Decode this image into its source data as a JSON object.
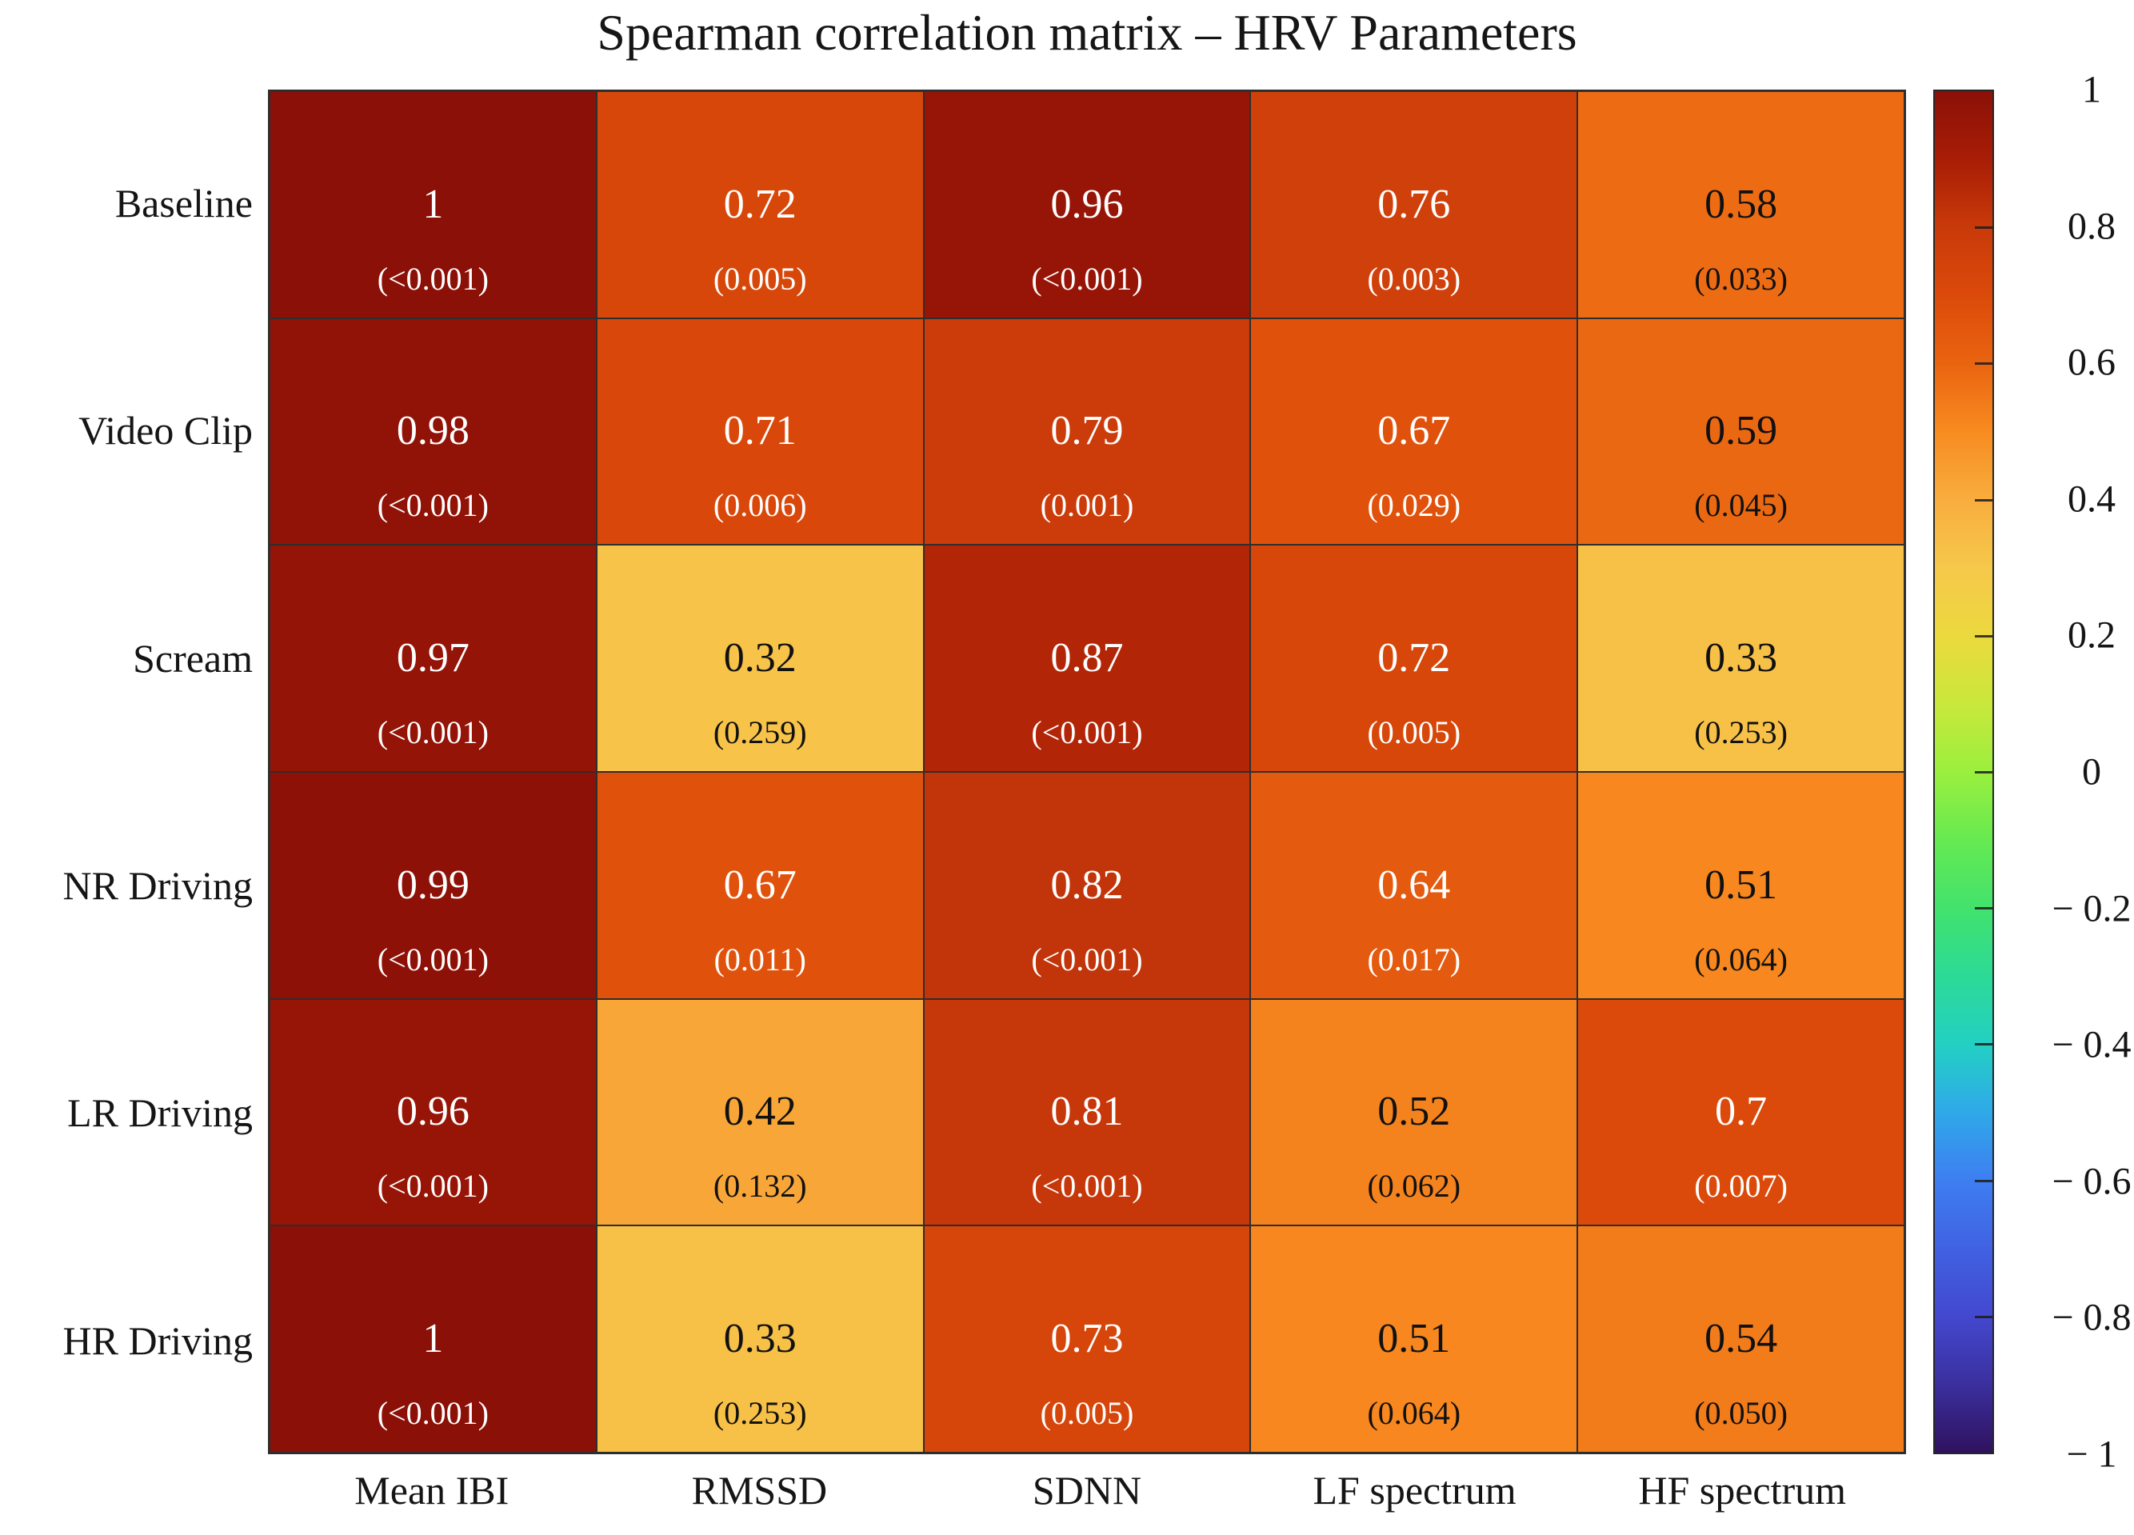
{
  "figure": {
    "background": "#ffffff",
    "grid_line_color": "#2e2e2e",
    "text_dark": "#151515",
    "cell_text_light": "#ffffff",
    "cell_text_dark": "#111111"
  },
  "chart_data": {
    "type": "heatmap",
    "title": "Spearman correlation matrix – HRV Parameters",
    "rows": [
      "Baseline",
      "Video Clip",
      "Scream",
      "NR Driving",
      "LR Driving",
      "HR Driving"
    ],
    "columns": [
      "Mean IBI",
      "RMSSD",
      "SDNN",
      "LF spectrum",
      "HF spectrum"
    ],
    "value_range": [
      -1,
      1
    ],
    "cells": [
      [
        {
          "value": 1.0,
          "label": "1",
          "p": "(<0.001)"
        },
        {
          "value": 0.72,
          "label": "0.72",
          "p": "(0.005)"
        },
        {
          "value": 0.96,
          "label": "0.96",
          "p": "(<0.001)"
        },
        {
          "value": 0.76,
          "label": "0.76",
          "p": "(0.003)"
        },
        {
          "value": 0.58,
          "label": "0.58",
          "p": "(0.033)"
        }
      ],
      [
        {
          "value": 0.98,
          "label": "0.98",
          "p": "(<0.001)"
        },
        {
          "value": 0.71,
          "label": "0.71",
          "p": "(0.006)"
        },
        {
          "value": 0.79,
          "label": "0.79",
          "p": "(0.001)"
        },
        {
          "value": 0.67,
          "label": "0.67",
          "p": "(0.029)"
        },
        {
          "value": 0.59,
          "label": "0.59",
          "p": "(0.045)"
        }
      ],
      [
        {
          "value": 0.97,
          "label": "0.97",
          "p": "(<0.001)"
        },
        {
          "value": 0.32,
          "label": "0.32",
          "p": "(0.259)"
        },
        {
          "value": 0.87,
          "label": "0.87",
          "p": "(<0.001)"
        },
        {
          "value": 0.72,
          "label": "0.72",
          "p": "(0.005)"
        },
        {
          "value": 0.33,
          "label": "0.33",
          "p": "(0.253)"
        }
      ],
      [
        {
          "value": 0.99,
          "label": "0.99",
          "p": "(<0.001)"
        },
        {
          "value": 0.67,
          "label": "0.67",
          "p": "(0.011)"
        },
        {
          "value": 0.82,
          "label": "0.82",
          "p": "(<0.001)"
        },
        {
          "value": 0.64,
          "label": "0.64",
          "p": "(0.017)"
        },
        {
          "value": 0.51,
          "label": "0.51",
          "p": "(0.064)"
        }
      ],
      [
        {
          "value": 0.96,
          "label": "0.96",
          "p": "(<0.001)"
        },
        {
          "value": 0.42,
          "label": "0.42",
          "p": "(0.132)"
        },
        {
          "value": 0.81,
          "label": "0.81",
          "p": "(<0.001)"
        },
        {
          "value": 0.52,
          "label": "0.52",
          "p": "(0.062)"
        },
        {
          "value": 0.7,
          "label": "0.7",
          "p": "(0.007)"
        }
      ],
      [
        {
          "value": 1.0,
          "label": "1",
          "p": "(<0.001)"
        },
        {
          "value": 0.33,
          "label": "0.33",
          "p": "(0.253)"
        },
        {
          "value": 0.73,
          "label": "0.73",
          "p": "(0.005)"
        },
        {
          "value": 0.51,
          "label": "0.51",
          "p": "(0.064)"
        },
        {
          "value": 0.54,
          "label": "0.54",
          "p": "(0.050)"
        }
      ]
    ],
    "colorbar": {
      "min": -1,
      "max": 1,
      "tick_values": [
        1,
        0.8,
        0.6,
        0.4,
        0.2,
        0,
        -0.2,
        -0.4,
        -0.6,
        -0.8,
        -1
      ],
      "tick_labels": [
        "1",
        "0.8",
        "0.6",
        "0.4",
        "0.2",
        "0",
        "− 0.2",
        "− 0.4",
        "− 0.6",
        "− 0.8",
        "− 1"
      ]
    },
    "colormap_stops": [
      {
        "v": -1.0,
        "c": "#2f125e"
      },
      {
        "v": -0.9,
        "c": "#3b2f9e"
      },
      {
        "v": -0.8,
        "c": "#4348cf"
      },
      {
        "v": -0.7,
        "c": "#4062e2"
      },
      {
        "v": -0.6,
        "c": "#3e7ef1"
      },
      {
        "v": -0.5,
        "c": "#2fa9e9"
      },
      {
        "v": -0.4,
        "c": "#23d0c3"
      },
      {
        "v": -0.3,
        "c": "#2cda96"
      },
      {
        "v": -0.2,
        "c": "#42e26d"
      },
      {
        "v": -0.1,
        "c": "#66ea51"
      },
      {
        "v": 0.0,
        "c": "#9bef3e"
      },
      {
        "v": 0.1,
        "c": "#c9e83c"
      },
      {
        "v": 0.2,
        "c": "#ecd93e"
      },
      {
        "v": 0.3,
        "c": "#f6c84b"
      },
      {
        "v": 0.4,
        "c": "#f9ad3e"
      },
      {
        "v": 0.5,
        "c": "#f88b20"
      },
      {
        "v": 0.6,
        "c": "#ea6410"
      },
      {
        "v": 0.7,
        "c": "#db4a0a"
      },
      {
        "v": 0.8,
        "c": "#c93a0a"
      },
      {
        "v": 0.9,
        "c": "#a81d06"
      },
      {
        "v": 1.0,
        "c": "#8b1007"
      }
    ]
  }
}
